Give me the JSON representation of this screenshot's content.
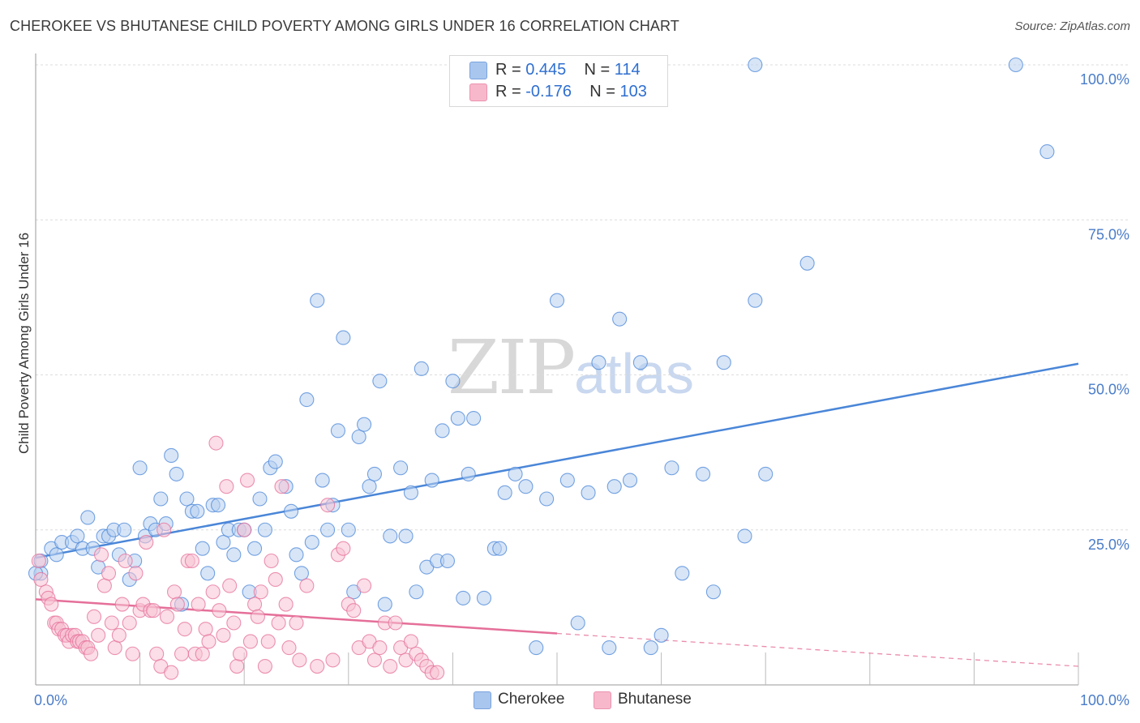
{
  "title": "CHEROKEE VS BHUTANESE CHILD POVERTY AMONG GIRLS UNDER 16 CORRELATION CHART",
  "source": "Source: ZipAtlas.com",
  "watermark": {
    "zip": "ZIP",
    "atlas": "atlas"
  },
  "legend": {
    "rows": [
      {
        "r_label": "R =",
        "r_value": "0.445",
        "n_label": "N =",
        "n_value": "114",
        "color": "#a9c6ee"
      },
      {
        "r_label": "R =",
        "r_value": "-0.176",
        "n_label": "N =",
        "n_value": "103",
        "color": "#f7b8cb"
      }
    ]
  },
  "bottom_legend": [
    {
      "label": "Cherokee",
      "color": "#a9c6ee"
    },
    {
      "label": "Bhutanese",
      "color": "#f7b8cb"
    }
  ],
  "chart_data": {
    "type": "scatter",
    "title": "CHEROKEE VS BHUTANESE CHILD POVERTY AMONG GIRLS UNDER 16 CORRELATION CHART",
    "xlabel": "",
    "ylabel": "Child Poverty Among Girls Under 16",
    "xlim": [
      0,
      100
    ],
    "ylim": [
      0,
      100
    ],
    "x_tick_labels": [
      "0.0%",
      "100.0%"
    ],
    "y_tick_labels": [
      "100.0%",
      "75.0%",
      "50.0%",
      "25.0%"
    ],
    "y_ticks": [
      100,
      75,
      50,
      25
    ],
    "grid": true,
    "legend_position": "top-center",
    "series": [
      {
        "name": "Cherokee",
        "color": "#4a86d8",
        "fill": "#b7cff0",
        "trend": {
          "x": [
            0,
            100
          ],
          "y": [
            20.5,
            51.8
          ],
          "style": "solid"
        },
        "points": [
          [
            0.5,
            20
          ],
          [
            0.5,
            18
          ],
          [
            1.5,
            22
          ],
          [
            2,
            21
          ],
          [
            2.5,
            23
          ],
          [
            3.5,
            23
          ],
          [
            4,
            24
          ],
          [
            4.5,
            22
          ],
          [
            5,
            27
          ],
          [
            5.5,
            22
          ],
          [
            6,
            19
          ],
          [
            6.5,
            24
          ],
          [
            7,
            24
          ],
          [
            7.5,
            25
          ],
          [
            8,
            21
          ],
          [
            8.5,
            25
          ],
          [
            9,
            17
          ],
          [
            9.5,
            20
          ],
          [
            10,
            35
          ],
          [
            10.5,
            24
          ],
          [
            11,
            26
          ],
          [
            11.5,
            25
          ],
          [
            12,
            30
          ],
          [
            12.5,
            26
          ],
          [
            13,
            37
          ],
          [
            13.5,
            34
          ],
          [
            14,
            13
          ],
          [
            14.5,
            30
          ],
          [
            15,
            28
          ],
          [
            15.5,
            28
          ],
          [
            16,
            22
          ],
          [
            16.5,
            18
          ],
          [
            17,
            29
          ],
          [
            17.5,
            29
          ],
          [
            18,
            23
          ],
          [
            18.5,
            25
          ],
          [
            19,
            21
          ],
          [
            19.5,
            25
          ],
          [
            20,
            25
          ],
          [
            20.5,
            15
          ],
          [
            21,
            22
          ],
          [
            21.5,
            30
          ],
          [
            22,
            25
          ],
          [
            22.5,
            35
          ],
          [
            23,
            36
          ],
          [
            24,
            32
          ],
          [
            24.5,
            28
          ],
          [
            25,
            21
          ],
          [
            25.5,
            18
          ],
          [
            26,
            46
          ],
          [
            26.5,
            23
          ],
          [
            27,
            62
          ],
          [
            27.5,
            33
          ],
          [
            28,
            25
          ],
          [
            28.5,
            29
          ],
          [
            29,
            41
          ],
          [
            29.5,
            56
          ],
          [
            30,
            25
          ],
          [
            30.5,
            15
          ],
          [
            31,
            40
          ],
          [
            31.5,
            42
          ],
          [
            32,
            32
          ],
          [
            32.5,
            34
          ],
          [
            33,
            49
          ],
          [
            33.5,
            13
          ],
          [
            34,
            24
          ],
          [
            35,
            35
          ],
          [
            35.5,
            24
          ],
          [
            36,
            31
          ],
          [
            36.5,
            15
          ],
          [
            37,
            51
          ],
          [
            37.5,
            19
          ],
          [
            38,
            33
          ],
          [
            38.5,
            20
          ],
          [
            39,
            41
          ],
          [
            39.5,
            20
          ],
          [
            40,
            49
          ],
          [
            40.5,
            43
          ],
          [
            41,
            14
          ],
          [
            41.5,
            34
          ],
          [
            42,
            43
          ],
          [
            43,
            14
          ],
          [
            44,
            22
          ],
          [
            44.5,
            22
          ],
          [
            45,
            31
          ],
          [
            46,
            34
          ],
          [
            47,
            32
          ],
          [
            48,
            6
          ],
          [
            49,
            30
          ],
          [
            50,
            62
          ],
          [
            51,
            33
          ],
          [
            52,
            10
          ],
          [
            53,
            31
          ],
          [
            54,
            52
          ],
          [
            55,
            6
          ],
          [
            55.5,
            32
          ],
          [
            56,
            59
          ],
          [
            57,
            33
          ],
          [
            58,
            52
          ],
          [
            59,
            6
          ],
          [
            60,
            8
          ],
          [
            61,
            35
          ],
          [
            62,
            18
          ],
          [
            64,
            34
          ],
          [
            65,
            15
          ],
          [
            66,
            52
          ],
          [
            68,
            24
          ],
          [
            69,
            62
          ],
          [
            70,
            34
          ],
          [
            74,
            68
          ],
          [
            69,
            100
          ],
          [
            94,
            100
          ],
          [
            97,
            86
          ],
          [
            0,
            18
          ]
        ]
      },
      {
        "name": "Bhutanese",
        "color": "#e56f99",
        "fill": "#f7c3d3",
        "trend": {
          "x": [
            0,
            50
          ],
          "y": [
            13.8,
            8.3
          ],
          "style": "solid",
          "extended": {
            "x": [
              50,
              100
            ],
            "y": [
              8.3,
              3.0
            ],
            "style": "dashed"
          }
        },
        "points": [
          [
            0.3,
            20
          ],
          [
            0.5,
            17
          ],
          [
            1,
            15
          ],
          [
            1.2,
            14
          ],
          [
            1.5,
            13
          ],
          [
            1.8,
            10
          ],
          [
            2,
            10
          ],
          [
            2.2,
            9
          ],
          [
            2.5,
            9
          ],
          [
            2.8,
            8
          ],
          [
            3,
            8
          ],
          [
            3.2,
            7
          ],
          [
            3.5,
            8
          ],
          [
            3.8,
            8
          ],
          [
            4,
            7
          ],
          [
            4.2,
            7
          ],
          [
            4.5,
            7
          ],
          [
            4.8,
            6
          ],
          [
            5,
            6
          ],
          [
            5.3,
            5
          ],
          [
            5.6,
            11
          ],
          [
            6,
            8
          ],
          [
            6.3,
            21
          ],
          [
            6.6,
            16
          ],
          [
            7,
            18
          ],
          [
            7.3,
            10
          ],
          [
            7.6,
            6
          ],
          [
            8,
            8
          ],
          [
            8.3,
            13
          ],
          [
            8.6,
            20
          ],
          [
            9,
            10
          ],
          [
            9.3,
            5
          ],
          [
            9.6,
            18
          ],
          [
            10,
            12
          ],
          [
            10.3,
            13
          ],
          [
            10.6,
            23
          ],
          [
            11,
            12
          ],
          [
            11.3,
            12
          ],
          [
            11.6,
            5
          ],
          [
            12,
            3
          ],
          [
            12.3,
            25
          ],
          [
            12.6,
            11
          ],
          [
            13,
            2
          ],
          [
            13.3,
            15
          ],
          [
            13.6,
            13
          ],
          [
            14,
            5
          ],
          [
            14.3,
            9
          ],
          [
            14.6,
            20
          ],
          [
            15,
            20
          ],
          [
            15.3,
            5
          ],
          [
            15.6,
            13
          ],
          [
            16,
            5
          ],
          [
            16.3,
            9
          ],
          [
            16.6,
            7
          ],
          [
            17,
            15
          ],
          [
            17.3,
            39
          ],
          [
            17.6,
            12
          ],
          [
            18,
            8
          ],
          [
            18.3,
            32
          ],
          [
            18.6,
            16
          ],
          [
            19,
            10
          ],
          [
            19.3,
            3
          ],
          [
            19.6,
            5
          ],
          [
            20,
            25
          ],
          [
            20.3,
            33
          ],
          [
            20.6,
            7
          ],
          [
            21,
            13
          ],
          [
            21.3,
            11
          ],
          [
            21.6,
            15
          ],
          [
            22,
            3
          ],
          [
            22.3,
            7
          ],
          [
            22.6,
            20
          ],
          [
            23,
            17
          ],
          [
            23.3,
            10
          ],
          [
            23.6,
            32
          ],
          [
            24,
            13
          ],
          [
            24.3,
            6
          ],
          [
            25,
            10
          ],
          [
            25.3,
            4
          ],
          [
            26,
            16
          ],
          [
            27,
            3
          ],
          [
            28,
            29
          ],
          [
            28.5,
            4
          ],
          [
            29,
            21
          ],
          [
            29.5,
            22
          ],
          [
            30,
            13
          ],
          [
            30.5,
            12
          ],
          [
            31,
            6
          ],
          [
            31.5,
            16
          ],
          [
            32,
            7
          ],
          [
            32.5,
            4
          ],
          [
            33,
            6
          ],
          [
            33.5,
            10
          ],
          [
            34,
            3
          ],
          [
            34.5,
            10
          ],
          [
            35,
            6
          ],
          [
            35.5,
            4
          ],
          [
            36,
            7
          ],
          [
            36.5,
            5
          ],
          [
            37,
            4
          ],
          [
            37.5,
            3
          ],
          [
            38,
            2
          ],
          [
            38.5,
            2
          ]
        ]
      }
    ]
  }
}
